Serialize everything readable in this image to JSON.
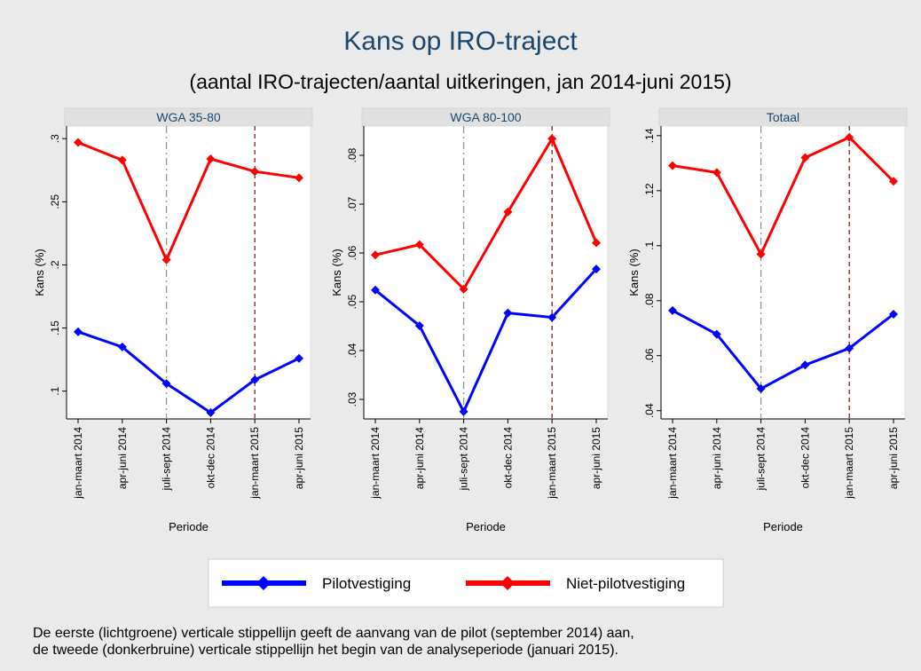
{
  "title": "Kans op IRO-traject",
  "subtitle": "(aantal IRO-trajecten/aantal uitkeringen, jan 2014-juni 2015)",
  "note": [
    "De eerste (lichtgroene) verticale stippellijn geeft de aanvang van de pilot (september 2014) aan,",
    "de tweede (donkerbruine) verticale stippellijn het begin van de analyseperiode (januari 2015)."
  ],
  "chart_data": [
    {
      "type": "line",
      "title": "WGA 35-80",
      "xlabel": "Periode",
      "ylabel": "Kans (%)",
      "categories": [
        "jan-maart 2014",
        "apr-juni 2014",
        "juli-sept 2014",
        "okt-dec 2014",
        "jan-maart 2015",
        "apr-juni 2015"
      ],
      "ylim": [
        0.078,
        0.31
      ],
      "yticks": [
        {
          "value": 0.1,
          "label": ".1"
        },
        {
          "value": 0.15,
          "label": ".15"
        },
        {
          "value": 0.2,
          "label": ".2"
        },
        {
          "value": 0.25,
          "label": ".25"
        },
        {
          "value": 0.3,
          "label": ".3"
        }
      ],
      "vlines": [
        {
          "x": "juli-sept 2014",
          "color": "#7fa38a",
          "dash": "8 4 2 4"
        },
        {
          "x": "jan-maart 2015",
          "color": "#8b1a1a",
          "dash": "5 4"
        }
      ],
      "series": [
        {
          "name": "Pilotvestiging",
          "color": "#0000ff",
          "values": [
            0.147,
            0.135,
            0.106,
            0.083,
            0.109,
            0.126
          ]
        },
        {
          "name": "Niet-pilotvestiging",
          "color": "#ff0000",
          "values": [
            0.297,
            0.283,
            0.204,
            0.284,
            0.274,
            0.269
          ]
        }
      ]
    },
    {
      "type": "line",
      "title": "WGA 80-100",
      "xlabel": "Periode",
      "ylabel": "Kans (%)",
      "categories": [
        "jan-maart 2014",
        "apr-juni 2014",
        "juli-sept 2014",
        "okt-dec 2014",
        "jan-maart 2015",
        "apr-juni 2015"
      ],
      "ylim": [
        0.026,
        0.086
      ],
      "yticks": [
        {
          "value": 0.03,
          "label": ".03"
        },
        {
          "value": 0.04,
          "label": ".04"
        },
        {
          "value": 0.05,
          "label": ".05"
        },
        {
          "value": 0.06,
          "label": ".06"
        },
        {
          "value": 0.07,
          "label": ".07"
        },
        {
          "value": 0.08,
          "label": ".08"
        }
      ],
      "vlines": [
        {
          "x": "juli-sept 2014",
          "color": "#7fa38a",
          "dash": "8 4 2 4"
        },
        {
          "x": "jan-maart 2015",
          "color": "#8b1a1a",
          "dash": "5 4"
        }
      ],
      "series": [
        {
          "name": "Pilotvestiging",
          "color": "#0000ff",
          "values": [
            0.0524,
            0.0451,
            0.0275,
            0.0477,
            0.0468,
            0.0567
          ]
        },
        {
          "name": "Niet-pilotvestiging",
          "color": "#ff0000",
          "values": [
            0.0596,
            0.0617,
            0.0526,
            0.0684,
            0.0834,
            0.0621
          ]
        }
      ]
    },
    {
      "type": "line",
      "title": "Totaal",
      "xlabel": "Periode",
      "ylabel": "Kans (%)",
      "categories": [
        "jan-maart 2014",
        "apr-juni 2014",
        "juli-sept 2014",
        "okt-dec 2014",
        "jan-maart 2015",
        "apr-juni 2015"
      ],
      "ylim": [
        0.037,
        0.1435
      ],
      "yticks": [
        {
          "value": 0.04,
          "label": ".04"
        },
        {
          "value": 0.06,
          "label": ".06"
        },
        {
          "value": 0.08,
          "label": ".08"
        },
        {
          "value": 0.1,
          "label": ".1"
        },
        {
          "value": 0.12,
          "label": ".12"
        },
        {
          "value": 0.14,
          "label": ".14"
        }
      ],
      "vlines": [
        {
          "x": "juli-sept 2014",
          "color": "#7fa38a",
          "dash": "8 4 2 4"
        },
        {
          "x": "jan-maart 2015",
          "color": "#8b1a1a",
          "dash": "5 4"
        }
      ],
      "series": [
        {
          "name": "Pilotvestiging",
          "color": "#0000ff",
          "values": [
            0.0764,
            0.0678,
            0.048,
            0.0566,
            0.0627,
            0.0751
          ]
        },
        {
          "name": "Niet-pilotvestiging",
          "color": "#ff0000",
          "values": [
            0.1291,
            0.1266,
            0.0969,
            0.132,
            0.1394,
            0.1234
          ]
        }
      ]
    }
  ]
}
